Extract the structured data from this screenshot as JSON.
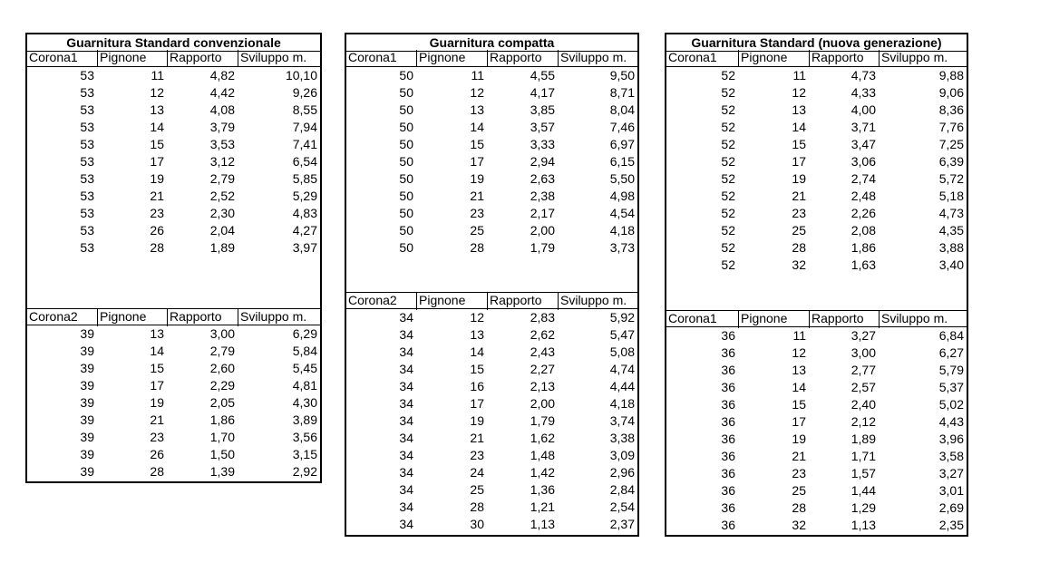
{
  "tables": [
    {
      "title": "Guarnitura Standard convenzionale",
      "sections": [
        {
          "header": [
            "Corona1",
            "Pignone",
            "Rapporto",
            "Sviluppo m."
          ],
          "rows": [
            [
              53,
              11,
              "4,82",
              "10,10"
            ],
            [
              53,
              12,
              "4,42",
              "9,26"
            ],
            [
              53,
              13,
              "4,08",
              "8,55"
            ],
            [
              53,
              14,
              "3,79",
              "7,94"
            ],
            [
              53,
              15,
              "3,53",
              "7,41"
            ],
            [
              53,
              17,
              "3,12",
              "6,54"
            ],
            [
              53,
              19,
              "2,79",
              "5,85"
            ],
            [
              53,
              21,
              "2,52",
              "5,29"
            ],
            [
              53,
              23,
              "2,30",
              "4,83"
            ],
            [
              53,
              26,
              "2,04",
              "4,27"
            ],
            [
              53,
              28,
              "1,89",
              "3,97"
            ]
          ]
        },
        {
          "header": [
            "Corona2",
            "Pignone",
            "Rapporto",
            "Sviluppo m."
          ],
          "rows": [
            [
              39,
              13,
              "3,00",
              "6,29"
            ],
            [
              39,
              14,
              "2,79",
              "5,84"
            ],
            [
              39,
              15,
              "2,60",
              "5,45"
            ],
            [
              39,
              17,
              "2,29",
              "4,81"
            ],
            [
              39,
              19,
              "2,05",
              "4,30"
            ],
            [
              39,
              21,
              "1,86",
              "3,89"
            ],
            [
              39,
              23,
              "1,70",
              "3,56"
            ],
            [
              39,
              26,
              "1,50",
              "3,15"
            ],
            [
              39,
              28,
              "1,39",
              "2,92"
            ]
          ]
        }
      ]
    },
    {
      "title": "Guarnitura compatta",
      "sections": [
        {
          "header": [
            "Corona1",
            "Pignone",
            "Rapporto",
            "Sviluppo m."
          ],
          "rows": [
            [
              50,
              11,
              "4,55",
              "9,50"
            ],
            [
              50,
              12,
              "4,17",
              "8,71"
            ],
            [
              50,
              13,
              "3,85",
              "8,04"
            ],
            [
              50,
              14,
              "3,57",
              "7,46"
            ],
            [
              50,
              15,
              "3,33",
              "6,97"
            ],
            [
              50,
              17,
              "2,94",
              "6,15"
            ],
            [
              50,
              19,
              "2,63",
              "5,50"
            ],
            [
              50,
              21,
              "2,38",
              "4,98"
            ],
            [
              50,
              23,
              "2,17",
              "4,54"
            ],
            [
              50,
              25,
              "2,00",
              "4,18"
            ],
            [
              50,
              28,
              "1,79",
              "3,73"
            ]
          ]
        },
        {
          "header": [
            "Corona2",
            "Pignone",
            "Rapporto",
            "Sviluppo m."
          ],
          "rows": [
            [
              34,
              12,
              "2,83",
              "5,92"
            ],
            [
              34,
              13,
              "2,62",
              "5,47"
            ],
            [
              34,
              14,
              "2,43",
              "5,08"
            ],
            [
              34,
              15,
              "2,27",
              "4,74"
            ],
            [
              34,
              16,
              "2,13",
              "4,44"
            ],
            [
              34,
              17,
              "2,00",
              "4,18"
            ],
            [
              34,
              19,
              "1,79",
              "3,74"
            ],
            [
              34,
              21,
              "1,62",
              "3,38"
            ],
            [
              34,
              23,
              "1,48",
              "3,09"
            ],
            [
              34,
              24,
              "1,42",
              "2,96"
            ],
            [
              34,
              25,
              "1,36",
              "2,84"
            ],
            [
              34,
              28,
              "1,21",
              "2,54"
            ],
            [
              34,
              30,
              "1,13",
              "2,37"
            ]
          ]
        }
      ]
    },
    {
      "title": "Guarnitura Standard (nuova generazione)",
      "sections": [
        {
          "header": [
            "Corona1",
            "Pignone",
            "Rapporto",
            "Sviluppo m."
          ],
          "rows": [
            [
              52,
              11,
              "4,73",
              "9,88"
            ],
            [
              52,
              12,
              "4,33",
              "9,06"
            ],
            [
              52,
              13,
              "4,00",
              "8,36"
            ],
            [
              52,
              14,
              "3,71",
              "7,76"
            ],
            [
              52,
              15,
              "3,47",
              "7,25"
            ],
            [
              52,
              17,
              "3,06",
              "6,39"
            ],
            [
              52,
              19,
              "2,74",
              "5,72"
            ],
            [
              52,
              21,
              "2,48",
              "5,18"
            ],
            [
              52,
              23,
              "2,26",
              "4,73"
            ],
            [
              52,
              25,
              "2,08",
              "4,35"
            ],
            [
              52,
              28,
              "1,86",
              "3,88"
            ],
            [
              52,
              32,
              "1,63",
              "3,40"
            ]
          ]
        },
        {
          "header": [
            "Corona1",
            "Pignone",
            "Rapporto",
            "Sviluppo m."
          ],
          "rows": [
            [
              36,
              11,
              "3,27",
              "6,84"
            ],
            [
              36,
              12,
              "3,00",
              "6,27"
            ],
            [
              36,
              13,
              "2,77",
              "5,79"
            ],
            [
              36,
              14,
              "2,57",
              "5,37"
            ],
            [
              36,
              15,
              "2,40",
              "5,02"
            ],
            [
              36,
              17,
              "2,12",
              "4,43"
            ],
            [
              36,
              19,
              "1,89",
              "3,96"
            ],
            [
              36,
              21,
              "1,71",
              "3,58"
            ],
            [
              36,
              23,
              "1,57",
              "3,27"
            ],
            [
              36,
              25,
              "1,44",
              "3,01"
            ],
            [
              36,
              28,
              "1,29",
              "2,69"
            ],
            [
              36,
              32,
              "1,13",
              "2,35"
            ]
          ]
        }
      ]
    }
  ]
}
